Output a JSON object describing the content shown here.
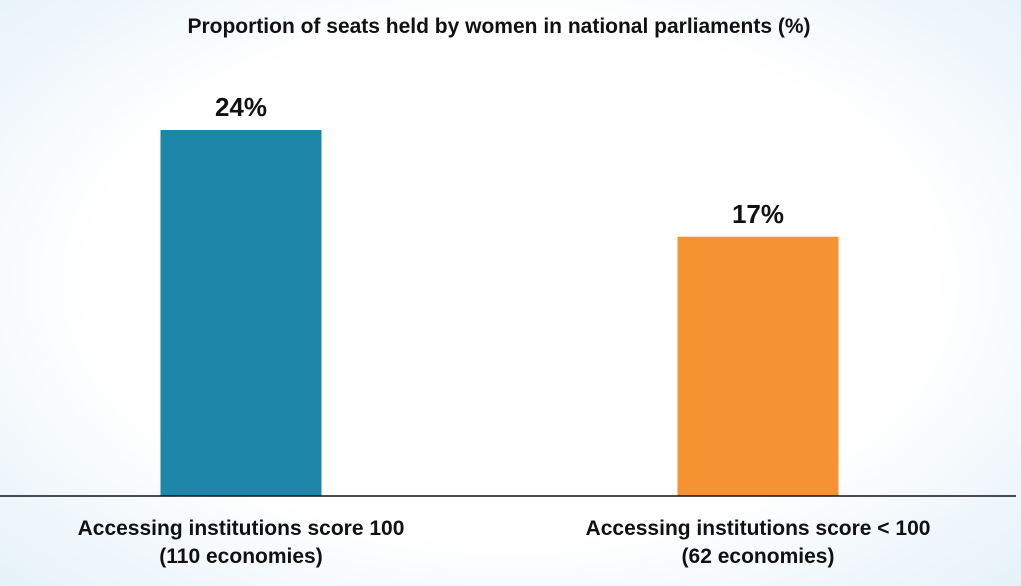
{
  "chart_data": {
    "type": "bar",
    "title": "Proportion of seats held by women in national parliaments (%)",
    "categories": [
      [
        "Accessing institutions score 100",
        "(110 economies)"
      ],
      [
        "Accessing institutions score < 100",
        "(62 economies)"
      ]
    ],
    "values": [
      24,
      17
    ],
    "data_labels": [
      "24%",
      "17%"
    ],
    "colors": [
      "#1d86a9",
      "#f59232"
    ],
    "ylim": [
      0,
      27
    ],
    "grid": false,
    "legend": "none"
  }
}
